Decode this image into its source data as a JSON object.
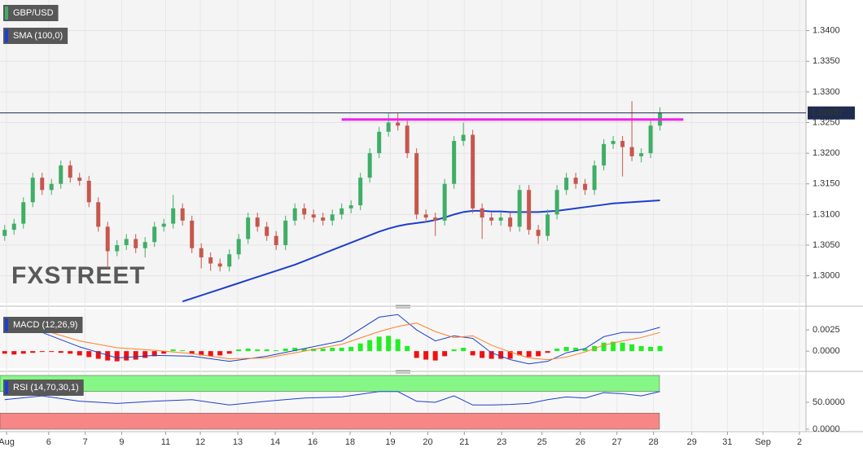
{
  "chart_data": [
    {
      "type": "candlestick",
      "name": "GBP/USD",
      "color": "#3fae66",
      "up_color": "#3fae66",
      "down_color": "#c6574d",
      "watermark": "FXSTREET",
      "open": [
        1.3065,
        1.3075,
        1.3085,
        1.312,
        1.316,
        1.314,
        1.315,
        1.318,
        1.316,
        1.3155,
        1.312,
        1.308,
        1.304,
        1.305,
        1.306,
        1.3045,
        1.3055,
        1.308,
        1.3085,
        1.311,
        1.309,
        1.3045,
        1.303,
        1.302,
        1.3015,
        1.3035,
        1.306,
        1.3095,
        1.308,
        1.3065,
        1.305,
        1.309,
        1.311,
        1.31,
        1.3095,
        1.309,
        1.31,
        1.311,
        1.3115,
        1.316,
        1.32,
        1.3235,
        1.325,
        1.3245,
        1.32,
        1.31,
        1.3095,
        1.309,
        1.315,
        1.322,
        1.323,
        1.311,
        1.3095,
        1.309,
        1.3095,
        1.308,
        1.314,
        1.3075,
        1.3065,
        1.31,
        1.314,
        1.316,
        1.315,
        1.314,
        1.318,
        1.3215,
        1.322,
        1.321,
        1.3195,
        1.32,
        1.3245
      ],
      "high": [
        1.3083,
        1.3093,
        1.3128,
        1.3168,
        1.3168,
        1.3158,
        1.3188,
        1.3188,
        1.3168,
        1.3163,
        1.3128,
        1.3088,
        1.3058,
        1.3068,
        1.3068,
        1.3063,
        1.3088,
        1.3093,
        1.3132,
        1.3118,
        1.3098,
        1.3053,
        1.3038,
        1.3028,
        1.3043,
        1.3068,
        1.3103,
        1.3103,
        1.3088,
        1.3073,
        1.3098,
        1.3118,
        1.3118,
        1.3108,
        1.3103,
        1.3108,
        1.3118,
        1.3123,
        1.3168,
        1.3208,
        1.3243,
        1.3265,
        1.3265,
        1.3253,
        1.3208,
        1.3108,
        1.3103,
        1.3158,
        1.3228,
        1.325,
        1.3238,
        1.3118,
        1.3103,
        1.3103,
        1.3103,
        1.3148,
        1.3148,
        1.3083,
        1.3108,
        1.3148,
        1.3168,
        1.3168,
        1.3158,
        1.3188,
        1.3223,
        1.3228,
        1.3228,
        1.3285,
        1.3208,
        1.3253,
        1.3275
      ],
      "low": [
        1.3057,
        1.3067,
        1.3077,
        1.3112,
        1.3132,
        1.3132,
        1.3142,
        1.3152,
        1.3147,
        1.3112,
        1.3072,
        1.3012,
        1.3032,
        1.3042,
        1.3037,
        1.303,
        1.3047,
        1.3072,
        1.3077,
        1.3082,
        1.3037,
        1.3012,
        1.3008,
        1.3007,
        1.3007,
        1.3027,
        1.3052,
        1.3072,
        1.3057,
        1.3042,
        1.3042,
        1.3082,
        1.3092,
        1.3087,
        1.3082,
        1.3082,
        1.3092,
        1.3102,
        1.3107,
        1.3152,
        1.3192,
        1.3227,
        1.3237,
        1.3192,
        1.3092,
        1.3087,
        1.3065,
        1.3082,
        1.3142,
        1.3212,
        1.3102,
        1.306,
        1.3082,
        1.3082,
        1.3072,
        1.3072,
        1.3067,
        1.3052,
        1.3057,
        1.3092,
        1.3132,
        1.3142,
        1.3132,
        1.3132,
        1.3172,
        1.3207,
        1.3162,
        1.3187,
        1.3185,
        1.3192,
        1.3237
      ],
      "close": [
        1.3075,
        1.3085,
        1.312,
        1.316,
        1.314,
        1.315,
        1.318,
        1.316,
        1.3155,
        1.312,
        1.308,
        1.304,
        1.305,
        1.306,
        1.3045,
        1.3055,
        1.308,
        1.3085,
        1.311,
        1.309,
        1.3045,
        1.303,
        1.302,
        1.3015,
        1.3035,
        1.306,
        1.3095,
        1.308,
        1.3065,
        1.305,
        1.309,
        1.311,
        1.31,
        1.3095,
        1.309,
        1.31,
        1.311,
        1.3115,
        1.316,
        1.32,
        1.3235,
        1.325,
        1.3245,
        1.32,
        1.31,
        1.3095,
        1.309,
        1.315,
        1.322,
        1.323,
        1.311,
        1.3095,
        1.309,
        1.3095,
        1.308,
        1.314,
        1.3075,
        1.3065,
        1.31,
        1.314,
        1.316,
        1.315,
        1.314,
        1.318,
        1.3215,
        1.322,
        1.321,
        1.3195,
        1.32,
        1.3245,
        1.32657
      ],
      "series": [
        {
          "name": "SMA (100,0)",
          "color": "#1c3fd0",
          "values": [
            null,
            null,
            null,
            null,
            null,
            null,
            null,
            null,
            null,
            null,
            null,
            null,
            null,
            null,
            null,
            null,
            null,
            null,
            null,
            1.2958,
            1.2963,
            1.2968,
            1.2973,
            1.2978,
            1.2983,
            1.2988,
            1.2993,
            1.2998,
            1.3003,
            1.3008,
            1.3013,
            1.3018,
            1.3024,
            1.303,
            1.3036,
            1.3042,
            1.3048,
            1.3054,
            1.306,
            1.3066,
            1.3072,
            1.3077,
            1.3081,
            1.3084,
            1.3086,
            1.3088,
            1.3091,
            1.3095,
            1.31,
            1.3104,
            1.3106,
            1.3106,
            1.3105,
            1.3105,
            1.3104,
            1.3104,
            1.3104,
            1.3104,
            1.3105,
            1.3106,
            1.3108,
            1.311,
            1.3112,
            1.3114,
            1.3116,
            1.3118,
            1.3119,
            1.312,
            1.3121,
            1.3122,
            1.3123
          ]
        }
      ],
      "resistance": {
        "value": 1.3255,
        "from": 36,
        "to": 72.5,
        "color": "#f21ef2"
      },
      "last_price": 1.32657,
      "ylim": [
        1.29556,
        1.345
      ],
      "yticks": [
        {
          "value": 1.3,
          "label": "1.3000"
        },
        {
          "value": 1.305,
          "label": "1.3050"
        },
        {
          "value": 1.31,
          "label": "1.3100"
        },
        {
          "value": 1.315,
          "label": "1.3150"
        },
        {
          "value": 1.32,
          "label": "1.3200"
        },
        {
          "value": 1.325,
          "label": "1.3250"
        },
        {
          "value": 1.33,
          "label": "1.3300"
        },
        {
          "value": 1.335,
          "label": "1.3350"
        },
        {
          "value": 1.34,
          "label": "1.3400"
        }
      ],
      "xlim": [
        -0.5,
        85.6
      ],
      "xticks": [
        {
          "value": 0.2,
          "label": "Aug"
        },
        {
          "value": 4.7,
          "label": "6"
        },
        {
          "value": 8.6,
          "label": "7"
        },
        {
          "value": 12.5,
          "label": "9"
        },
        {
          "value": 17.2,
          "label": "11"
        },
        {
          "value": 20.9,
          "label": "12"
        },
        {
          "value": 24.9,
          "label": "13"
        },
        {
          "value": 28.9,
          "label": "14"
        },
        {
          "value": 32.9,
          "label": "16"
        },
        {
          "value": 36.9,
          "label": "18"
        },
        {
          "value": 41.2,
          "label": "19"
        },
        {
          "value": 45.2,
          "label": "20"
        },
        {
          "value": 49.1,
          "label": "21"
        },
        {
          "value": 53.1,
          "label": "23"
        },
        {
          "value": 57.4,
          "label": "25"
        },
        {
          "value": 61.5,
          "label": "26"
        },
        {
          "value": 65.4,
          "label": "27"
        },
        {
          "value": 69.3,
          "label": "28"
        },
        {
          "value": 73.4,
          "label": "29"
        },
        {
          "value": 77.2,
          "label": "31"
        },
        {
          "value": 81,
          "label": "Sep"
        },
        {
          "value": 84.9,
          "label": "2"
        }
      ],
      "grid": true
    },
    {
      "type": "macd",
      "name": "MACD (12,26,9)",
      "color": "#1c3fd0",
      "histogram": {
        "up_color": "#22ee22",
        "down_color": "#ee1111",
        "values": [
          -0.0003,
          -0.0004,
          -0.0003,
          -0.0002,
          -0.0001,
          -0.0001,
          -0.0002,
          -0.0003,
          -0.0005,
          -0.0007,
          -0.0009,
          -0.0011,
          -0.0012,
          -0.0011,
          -0.001,
          -0.0008,
          -0.0006,
          -0.0003,
          0.0002,
          0.0001,
          -0.0003,
          -0.0005,
          -0.0006,
          -0.0005,
          -0.0003,
          0.0002,
          0.0003,
          0.0002,
          0.0002,
          0.0001,
          0.0003,
          0.0004,
          0.0003,
          0.0003,
          0.0003,
          0.0004,
          0.0004,
          0.0005,
          0.0009,
          0.0013,
          0.0017,
          0.0018,
          0.0014,
          0.0006,
          -0.0008,
          -0.001,
          -0.0011,
          -0.0006,
          0.0002,
          0.0004,
          -0.0005,
          -0.0008,
          -0.0009,
          -0.0009,
          -0.0009,
          -0.0005,
          -0.0007,
          -0.0006,
          -0.0002,
          0.0003,
          0.0005,
          0.0004,
          0.0003,
          0.0006,
          0.001,
          0.0011,
          0.001,
          0.0008,
          0.0006,
          0.0005,
          0.0006
        ]
      },
      "x": [
        0,
        4,
        8,
        12,
        16,
        20,
        24,
        28,
        32,
        36,
        40,
        42,
        44,
        46,
        48,
        50,
        52,
        54,
        56,
        58,
        60,
        62,
        64,
        66,
        68,
        70
      ],
      "series": [
        {
          "color": "#1c3fd0",
          "values": [
            0.003,
            0.0022,
            0.0005,
            -0.0008,
            -0.0005,
            -0.0006,
            -0.0012,
            -0.0006,
            0.0003,
            0.0012,
            0.004,
            0.0043,
            0.0025,
            0.0012,
            0.0018,
            0.0015,
            -0.0002,
            -0.001,
            -0.0015,
            -0.0012,
            -0.0002,
            0.0003,
            0.0017,
            0.0022,
            0.0022,
            0.0028
          ]
        },
        {
          "color": "#ff7f27",
          "values": [
            0.003,
            0.0025,
            0.0012,
            0.0004,
            0.0001,
            -0.0003,
            -0.0009,
            -0.0008,
            0.0,
            0.0008,
            0.0023,
            0.0029,
            0.0033,
            0.0023,
            0.0016,
            0.0018,
            0.0007,
            -0.0001,
            -0.0008,
            -0.001,
            -0.0007,
            -0.0001,
            0.0007,
            0.0012,
            0.0016,
            0.0022
          ]
        }
      ],
      "ylim": [
        -0.002,
        0.0049
      ],
      "yticks": [
        {
          "value": 0,
          "label": "0.0000"
        },
        {
          "value": 0.0025,
          "label": "0.0025"
        }
      ]
    },
    {
      "type": "line",
      "name": "RSI (14,70,30,1)",
      "color": "#1c3fd0",
      "bands": [
        {
          "from": 70,
          "to": 100,
          "color": "#86f786"
        },
        {
          "from": 0,
          "to": 30,
          "color": "#f78686"
        }
      ],
      "x": [
        0,
        4,
        8,
        12,
        16,
        20,
        24,
        28,
        32,
        36,
        40,
        42,
        44,
        46,
        48,
        50,
        52,
        54,
        56,
        58,
        60,
        62,
        64,
        66,
        68,
        70
      ],
      "values": [
        55,
        62,
        52,
        48,
        52,
        55,
        45,
        52,
        58,
        60,
        70,
        70,
        52,
        50,
        62,
        45,
        45,
        46,
        48,
        55,
        60,
        58,
        68,
        66,
        62,
        70
      ],
      "ylim": [
        -1.5,
        101.5
      ],
      "yticks": [
        {
          "value": 0,
          "label": "0.0000"
        },
        {
          "value": 50,
          "label": "50.0000"
        }
      ]
    }
  ]
}
